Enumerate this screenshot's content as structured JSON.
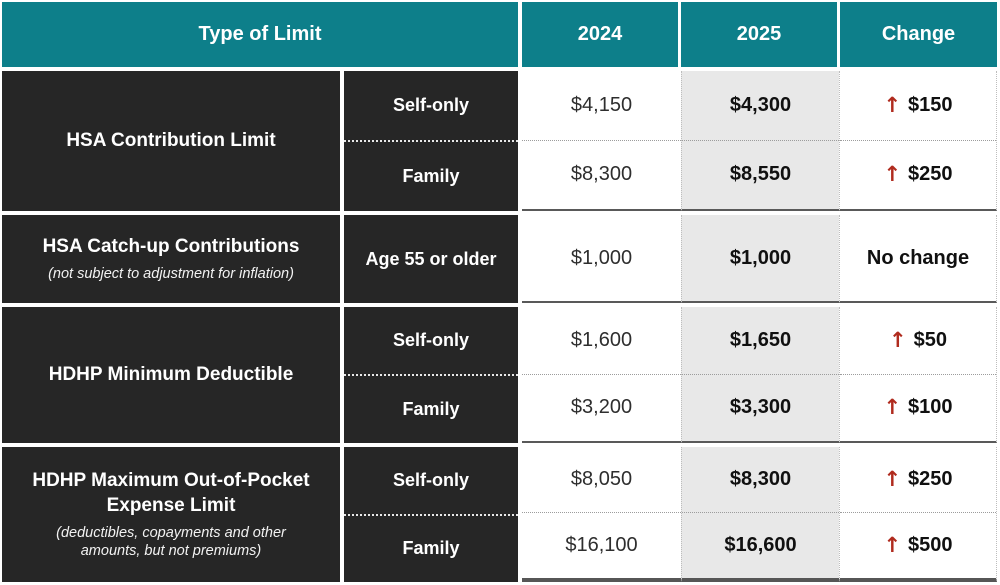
{
  "header": {
    "type_of_limit": "Type of Limit",
    "col_2024": "2024",
    "col_2025": "2025",
    "col_change": "Change"
  },
  "icons": {
    "up_arrow": "↑"
  },
  "colors": {
    "header_teal": "#0d7f8a",
    "row_label_dark": "#262626",
    "col_2025_gray": "#e8e8e8",
    "change_arrow_red": "#b02b1e"
  },
  "groups": [
    {
      "label": "HSA Contribution Limit",
      "subtitle": "",
      "rows": [
        {
          "sub": "Self-only",
          "v2024": "$4,150",
          "v2025": "$4,300",
          "change": "$150",
          "up": true
        },
        {
          "sub": "Family",
          "v2024": "$8,300",
          "v2025": "$8,550",
          "change": "$250",
          "up": true
        }
      ]
    },
    {
      "label": "HSA Catch-up Contributions",
      "subtitle": "(not subject to adjustment for inflation)",
      "rows": [
        {
          "sub": "Age 55 or older",
          "v2024": "$1,000",
          "v2025": "$1,000",
          "change": "No change",
          "up": false
        }
      ]
    },
    {
      "label": "HDHP Minimum Deductible",
      "subtitle": "",
      "rows": [
        {
          "sub": "Self-only",
          "v2024": "$1,600",
          "v2025": "$1,650",
          "change": "$50",
          "up": true
        },
        {
          "sub": "Family",
          "v2024": "$3,200",
          "v2025": "$3,300",
          "change": "$100",
          "up": true
        }
      ]
    },
    {
      "label": "HDHP Maximum Out-of-Pocket Expense Limit",
      "subtitle": "(deductibles, copayments and other amounts, but not premiums)",
      "rows": [
        {
          "sub": "Self-only",
          "v2024": "$8,050",
          "v2025": "$8,300",
          "change": "$250",
          "up": true
        },
        {
          "sub": "Family",
          "v2024": "$16,100",
          "v2025": "$16,600",
          "change": "$500",
          "up": true
        }
      ]
    }
  ],
  "chart_data": {
    "type": "table",
    "columns": [
      "Type of Limit",
      "Coverage",
      "2024",
      "2025",
      "Change"
    ],
    "rows": [
      [
        "HSA Contribution Limit",
        "Self-only",
        "$4,150",
        "$4,300",
        "↑ $150"
      ],
      [
        "HSA Contribution Limit",
        "Family",
        "$8,300",
        "$8,550",
        "↑ $250"
      ],
      [
        "HSA Catch-up Contributions (not subject to adjustment for inflation)",
        "Age 55 or older",
        "$1,000",
        "$1,000",
        "No change"
      ],
      [
        "HDHP Minimum Deductible",
        "Self-only",
        "$1,600",
        "$1,650",
        "↑ $50"
      ],
      [
        "HDHP Minimum Deductible",
        "Family",
        "$3,200",
        "$3,300",
        "↑ $100"
      ],
      [
        "HDHP Maximum Out-of-Pocket Expense Limit (deductibles, copayments and other amounts, but not premiums)",
        "Self-only",
        "$8,050",
        "$8,300",
        "↑ $250"
      ],
      [
        "HDHP Maximum Out-of-Pocket Expense Limit (deductibles, copayments and other amounts, but not premiums)",
        "Family",
        "$16,100",
        "$16,600",
        "↑ $500"
      ]
    ]
  }
}
